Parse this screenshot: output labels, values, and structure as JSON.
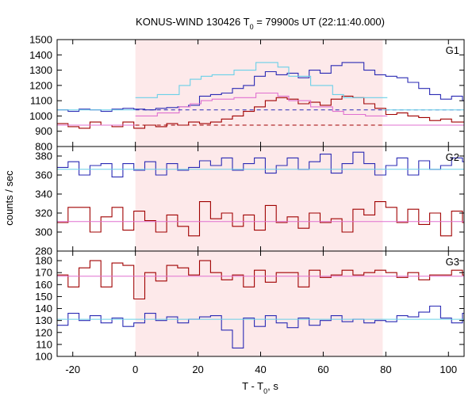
{
  "chart_data": {
    "type": "line",
    "title": "KONUS-WIND 130426 T",
    "title_sub": "0",
    "title_rest": " = 79900s UT (22:11:40.000)",
    "xlabel": "T - T",
    "xlabel_sub": "0",
    "xlabel_rest": ", s",
    "ylabel": "counts / sec",
    "xlim": [
      -25,
      105
    ],
    "x_ticks": [
      -20,
      0,
      20,
      40,
      60,
      80,
      100
    ],
    "highlight_interval": [
      0,
      79
    ],
    "bin_width": 3.5,
    "colors": {
      "blue": "#2a2ab4",
      "red": "#a00000",
      "cyan": "#6ad0e8",
      "magenta": "#e070d0",
      "highlight": "#fde9ea"
    },
    "panels": [
      {
        "label": "G1",
        "ylim": [
          800,
          1500
        ],
        "y_ticks": [
          800,
          900,
          1000,
          1100,
          1200,
          1300,
          1400,
          1500
        ],
        "series": [
          {
            "color": "blue",
            "style": "step",
            "x_start": -25,
            "values": [
              1040,
              1030,
              1045,
              1040,
              1030,
              1045,
              1050,
              1045,
              1040,
              1050,
              1055,
              1060,
              1070,
              1130,
              1140,
              1150,
              1180,
              1200,
              1260,
              1290,
              1270,
              1280,
              1250,
              1300,
              1280,
              1330,
              1350,
              1350,
              1300,
              1270,
              1260,
              1250,
              1220,
              1180,
              1140,
              1110,
              1130,
              1100,
              1090,
              1080,
              1060,
              1070,
              1050,
              1060,
              1040,
              1050,
              1030,
              1060,
              1040,
              1050,
              1060,
              1070,
              1040
            ]
          },
          {
            "color": "red",
            "style": "step",
            "x_start": -25,
            "values": [
              950,
              930,
              920,
              960,
              940,
              930,
              960,
              920,
              940,
              930,
              950,
              940,
              960,
              950,
              960,
              980,
              1000,
              1030,
              1060,
              1100,
              1120,
              1110,
              1080,
              1090,
              1070,
              1110,
              1130,
              1120,
              1080,
              1050,
              1010,
              1020,
              1000,
              990,
              970,
              980,
              960,
              960,
              950,
              940,
              960,
              950,
              940,
              960,
              940,
              950,
              930,
              950,
              940,
              960,
              940,
              950,
              960
            ]
          },
          {
            "color": "cyan",
            "style": "step",
            "x_start": 0,
            "values": [
              1120,
              1120,
              1140,
              1140,
              1200,
              1240,
              1260,
              1270,
              1270,
              1300,
              1300,
              1350,
              1350,
              1320,
              1260,
              1260,
              1200,
              1200,
              1140,
              1120,
              1120,
              1120,
              1120
            ]
          },
          {
            "color": "magenta",
            "style": "step",
            "x_start": 0,
            "values": [
              1000,
              1000,
              1020,
              1020,
              1060,
              1080,
              1100,
              1110,
              1110,
              1120,
              1120,
              1150,
              1150,
              1130,
              1100,
              1100,
              1060,
              1060,
              1030,
              1010,
              1010,
              1000,
              1000
            ]
          },
          {
            "color": "blue",
            "style": "dash",
            "level": 1040,
            "x": [
              0,
              105
            ]
          },
          {
            "color": "red",
            "style": "dash",
            "level": 940,
            "x": [
              0,
              105
            ]
          },
          {
            "color": "cyan",
            "style": "flat",
            "level": 1040,
            "x": [
              -25,
              0
            ]
          },
          {
            "color": "cyan",
            "style": "flat",
            "level": 1040,
            "x": [
              79,
              105
            ]
          },
          {
            "color": "magenta",
            "style": "flat",
            "level": 940,
            "x": [
              -25,
              0
            ]
          },
          {
            "color": "magenta",
            "style": "flat",
            "level": 940,
            "x": [
              79,
              105
            ]
          }
        ]
      },
      {
        "label": "G2",
        "ylim": [
          280,
          390
        ],
        "y_ticks": [
          280,
          300,
          320,
          340,
          360,
          380
        ],
        "series": [
          {
            "color": "blue",
            "style": "step",
            "x_start": -25,
            "values": [
              368,
              374,
              360,
              370,
              372,
              358,
              372,
              365,
              374,
              360,
              372,
              365,
              368,
              375,
              370,
              378,
              365,
              372,
              378,
              362,
              370,
              378,
              366,
              374,
              382,
              362,
              372,
              384,
              372,
              360,
              370,
              378,
              360,
              375,
              366,
              370,
              378,
              374,
              366,
              372,
              362,
              378,
              360,
              386,
              350,
              372,
              366,
              372,
              360,
              376,
              370,
              368,
              376
            ]
          },
          {
            "color": "red",
            "style": "step",
            "x_start": -25,
            "values": [
              310,
              326,
              326,
              300,
              316,
              326,
              302,
              322,
              312,
              300,
              318,
              306,
              296,
              332,
              314,
              320,
              306,
              318,
              302,
              328,
              310,
              316,
              304,
              320,
              310,
              314,
              300,
              324,
              318,
              332,
              326,
              310,
              324,
              308,
              320,
              296,
              322,
              310,
              320,
              298,
              326,
              322,
              310,
              328,
              296,
              312,
              306,
              326,
              320,
              308,
              304,
              316,
              302
            ]
          },
          {
            "color": "cyan",
            "style": "flat",
            "level": 366,
            "x": [
              -25,
              105
            ]
          },
          {
            "color": "magenta",
            "style": "flat",
            "level": 311,
            "x": [
              -25,
              105
            ]
          }
        ]
      },
      {
        "label": "G3",
        "ylim": [
          100,
          188
        ],
        "y_ticks": [
          100,
          110,
          120,
          130,
          140,
          150,
          160,
          170,
          180
        ],
        "series": [
          {
            "color": "blue",
            "style": "step",
            "x_start": -25,
            "values": [
              126,
              136,
              130,
              134,
              128,
              132,
              125,
              128,
              136,
              130,
              133,
              128,
              131,
              133,
              134,
              122,
              107,
              132,
              125,
              134,
              128,
              124,
              132,
              126,
              130,
              134,
              129,
              131,
              128,
              130,
              129,
              134,
              133,
              137,
              142,
              132,
              128,
              136,
              128,
              126,
              134,
              130,
              132,
              130,
              129,
              127,
              126,
              131,
              132,
              128,
              130,
              132,
              126
            ]
          },
          {
            "color": "red",
            "style": "step",
            "x_start": -25,
            "values": [
              168,
              158,
              174,
              180,
              158,
              178,
              176,
              148,
              170,
              163,
              176,
              174,
              168,
              180,
              170,
              164,
              168,
              158,
              172,
              162,
              170,
              170,
              158,
              172,
              166,
              168,
              172,
              168,
              170,
              172,
              170,
              166,
              170,
              164,
              168,
              168,
              172,
              168,
              174,
              174,
              174,
              166,
              170,
              164,
              168,
              166,
              172,
              168,
              170,
              160,
              162,
              166,
              164
            ]
          },
          {
            "color": "cyan",
            "style": "flat",
            "level": 131,
            "x": [
              -25,
              105
            ]
          },
          {
            "color": "magenta",
            "style": "flat",
            "level": 167,
            "x": [
              -25,
              105
            ]
          }
        ]
      }
    ]
  }
}
